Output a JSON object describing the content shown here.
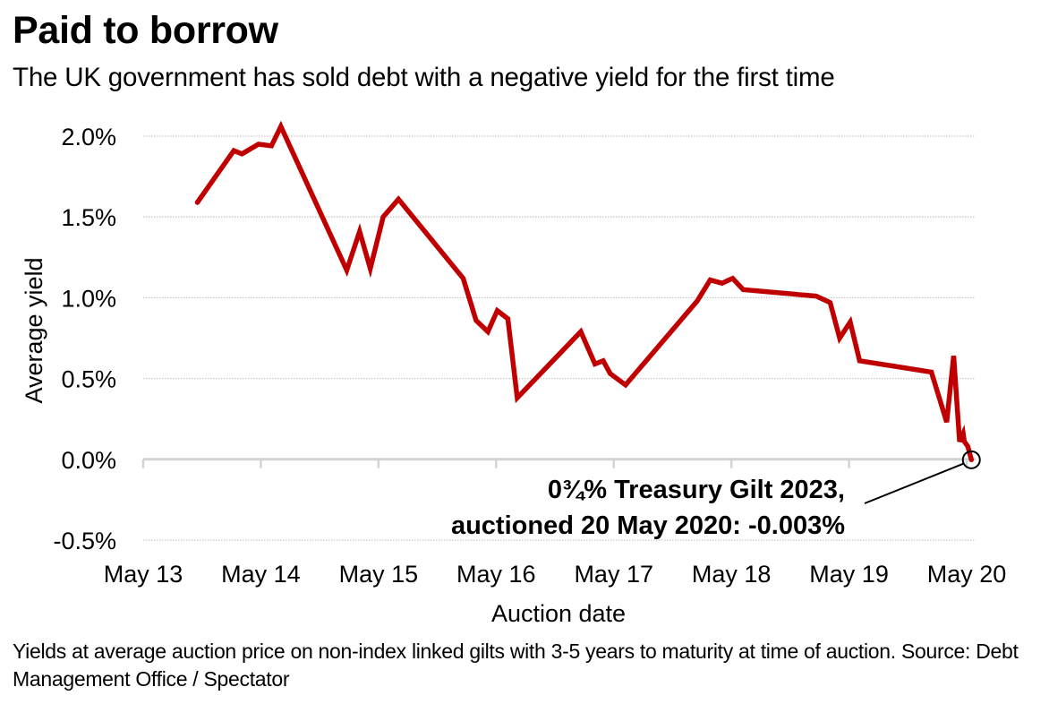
{
  "title": "Paid to borrow",
  "subtitle": "The UK government has sold debt with a negative yield for the first time",
  "footer": "Yields at average auction price on non-index linked gilts with 3-5 years to maturity at time of auction. Source: Debt Management Office / Spectator",
  "colors": {
    "line": "#c00000",
    "grid": "#c8c8c8",
    "axis": "#d3d3d3",
    "text": "#000000"
  },
  "chart_data": {
    "type": "line",
    "title": "Paid to borrow",
    "xlabel": "Auction date",
    "ylabel": "Average yield",
    "xlim": [
      2013,
      2020.08
    ],
    "ylim": [
      -0.5,
      2.0
    ],
    "grid": "horizontal dotted",
    "x_ticks": [
      {
        "value": 2013,
        "label": "May 13"
      },
      {
        "value": 2014,
        "label": "May 14"
      },
      {
        "value": 2015,
        "label": "May 15"
      },
      {
        "value": 2016,
        "label": "May 16"
      },
      {
        "value": 2017,
        "label": "May 17"
      },
      {
        "value": 2018,
        "label": "May 18"
      },
      {
        "value": 2019,
        "label": "May 19"
      },
      {
        "value": 2020,
        "label": "May 20"
      }
    ],
    "y_ticks": [
      {
        "value": 2.0,
        "label": "2.0%"
      },
      {
        "value": 1.5,
        "label": "1.5%"
      },
      {
        "value": 1.0,
        "label": "1.0%"
      },
      {
        "value": 0.5,
        "label": "0.5%"
      },
      {
        "value": 0.0,
        "label": "0.0%"
      },
      {
        "value": -0.5,
        "label": "-0.5%"
      }
    ],
    "series": [
      {
        "name": "Average yield",
        "x": [
          2013.46,
          2013.77,
          2013.84,
          2013.98,
          2014.09,
          2014.17,
          2014.73,
          2014.84,
          2014.93,
          2015.04,
          2015.17,
          2015.72,
          2015.83,
          2015.93,
          2016.01,
          2016.1,
          2016.18,
          2016.72,
          2016.84,
          2016.91,
          2016.97,
          2017.1,
          2017.71,
          2017.82,
          2017.92,
          2018.01,
          2018.1,
          2018.72,
          2018.84,
          2018.92,
          2019.01,
          2019.09,
          2019.7,
          2019.83,
          2019.89,
          2019.94,
          2019.97,
          2019.98,
          2020.01,
          2020.04
        ],
        "y": [
          1.59,
          1.91,
          1.89,
          1.95,
          1.94,
          2.06,
          1.17,
          1.41,
          1.18,
          1.5,
          1.61,
          1.12,
          0.86,
          0.79,
          0.92,
          0.87,
          0.38,
          0.79,
          0.59,
          0.61,
          0.53,
          0.46,
          0.98,
          1.11,
          1.09,
          1.12,
          1.05,
          1.01,
          0.97,
          0.75,
          0.85,
          0.61,
          0.54,
          0.23,
          0.64,
          0.11,
          0.16,
          0.11,
          0.08,
          -0.003
        ]
      }
    ],
    "annotation": {
      "line1": "0¾% Treasury Gilt 2023,",
      "line2": "auctioned 20 May 2020: -0.003%",
      "x": 2020.04,
      "y": -0.003
    }
  }
}
